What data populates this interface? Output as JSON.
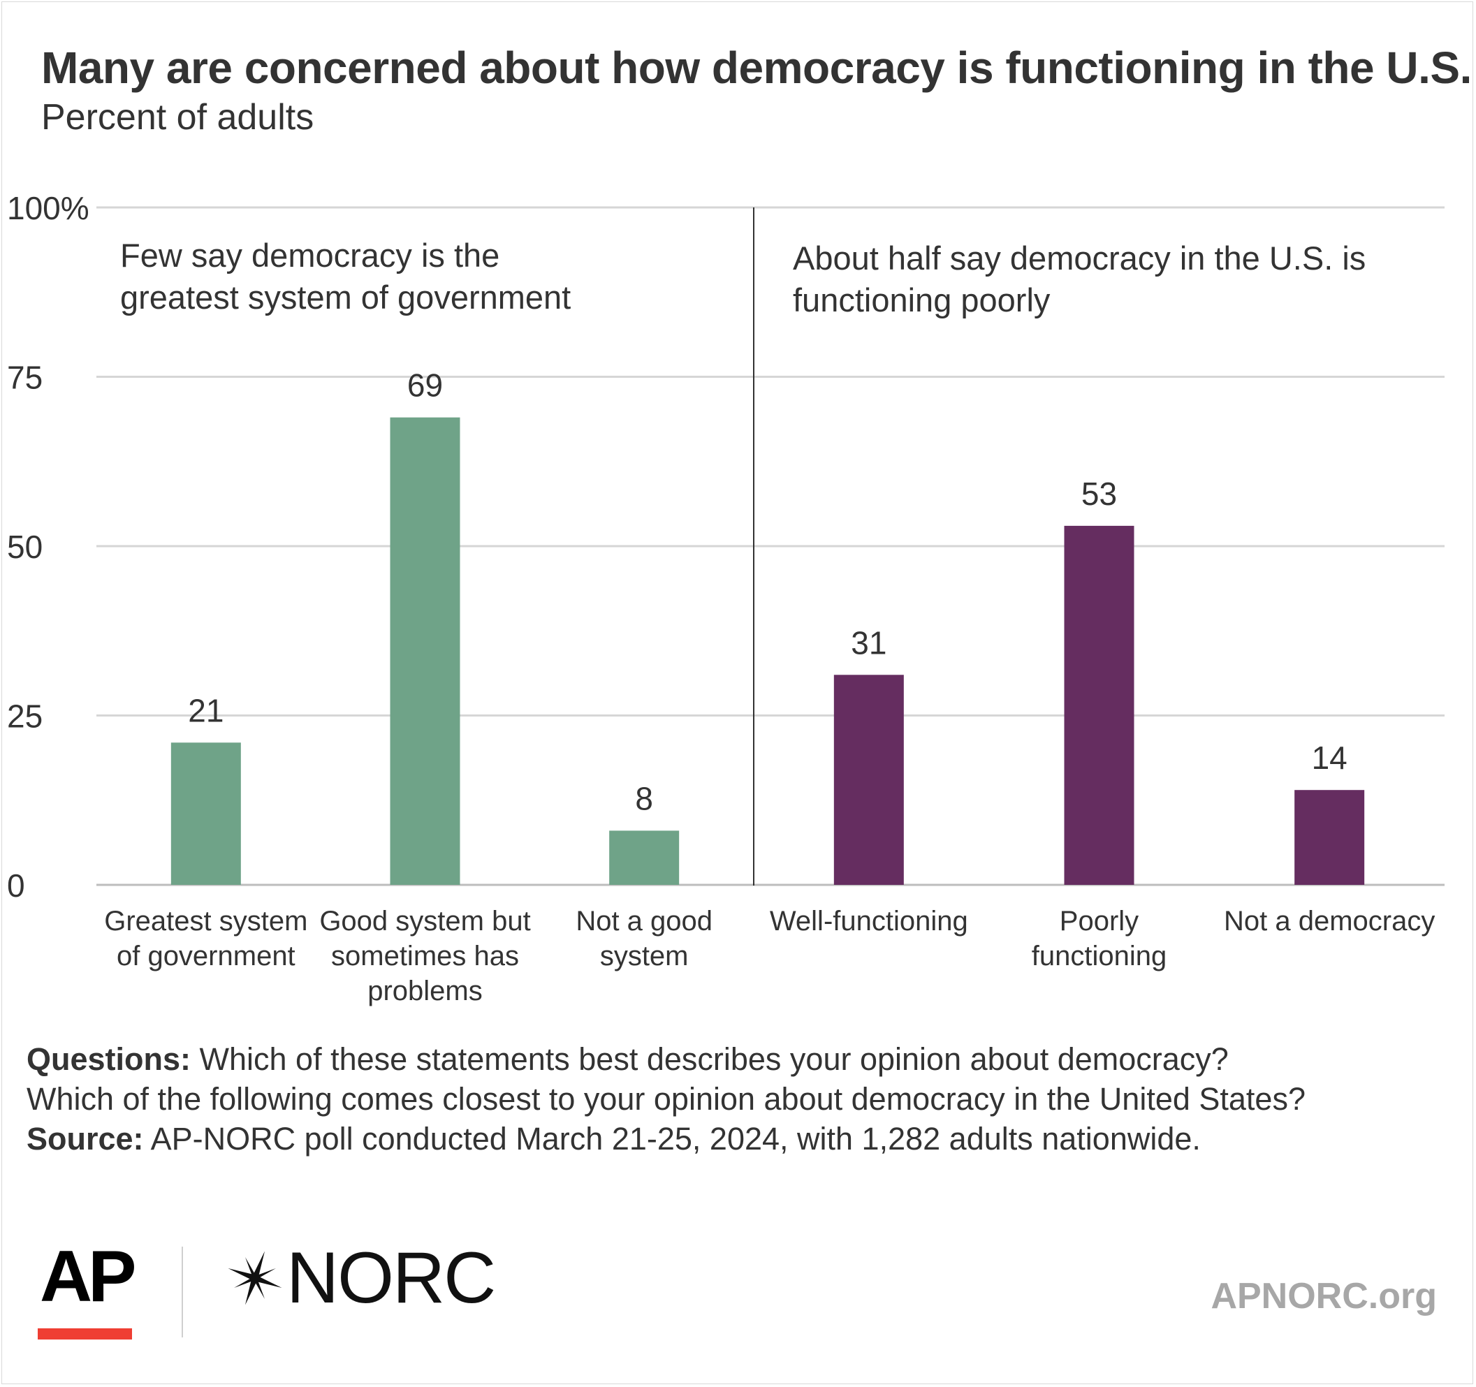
{
  "header": {
    "title": "Many are concerned about how democracy is functioning in the U.S.",
    "subtitle": "Percent of adults"
  },
  "chart_data": {
    "type": "bar",
    "ylim": [
      0,
      100
    ],
    "yticks": [
      "0",
      "25",
      "50",
      "75",
      "100%"
    ],
    "ytick_values": [
      0,
      25,
      50,
      75,
      100
    ],
    "grid": true,
    "panels": [
      {
        "annotation": [
          "Few say democracy is the",
          "greatest system of government"
        ],
        "color": "#6fa388",
        "categories": [
          [
            "Greatest system",
            "of government"
          ],
          [
            "Good system but",
            "sometimes has",
            "problems"
          ],
          [
            "Not a good",
            "system"
          ]
        ],
        "values": [
          21,
          69,
          8
        ]
      },
      {
        "annotation": [
          "About half say democracy in the U.S. is",
          "functioning poorly"
        ],
        "color": "#652d60",
        "categories": [
          [
            "Well-functioning"
          ],
          [
            "Poorly",
            "functioning"
          ],
          [
            "Not a democracy"
          ]
        ],
        "values": [
          31,
          53,
          14
        ]
      }
    ]
  },
  "notes": {
    "questions_label": "Questions:",
    "questions_line1": " Which of these statements best describes your opinion about democracy?",
    "questions_line2": "Which of the following comes closest to your opinion about democracy in the United States?",
    "source_label": "Source:",
    "source_text": " AP-NORC poll conducted March 21-25, 2024, with 1,282 adults nationwide."
  },
  "footer": {
    "ap_logo": "AP",
    "norc_logo": "NORC",
    "site": "APNORC.org",
    "ap_red": "#ef3e33"
  }
}
